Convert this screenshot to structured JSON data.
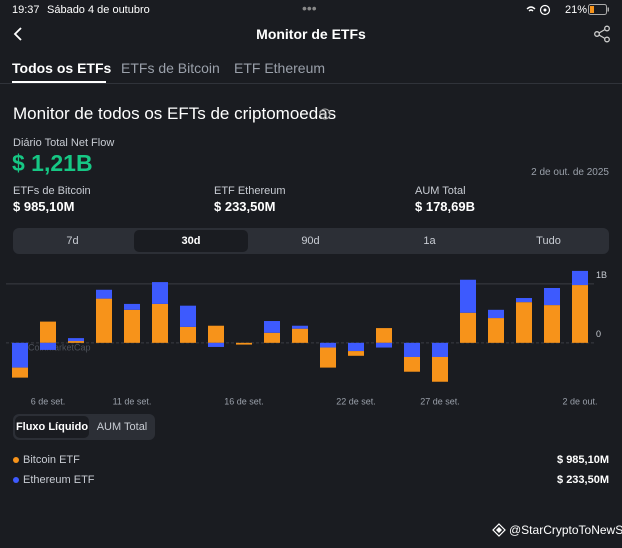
{
  "status": {
    "time": "19:37",
    "date": "Sábado 4 de outubro",
    "battery": "21%"
  },
  "header": {
    "title": "Monitor de ETFs"
  },
  "tabs": [
    "Todos os ETFs",
    "ETFs de Bitcoin",
    "ETF Ethereum"
  ],
  "section": {
    "title": "Monitor de todos os EFTs de criptomoedas",
    "net_flow_label": "Diário Total Net Flow",
    "net_flow": "$ 1,21B",
    "date": "2 de out. de 2025"
  },
  "stats": [
    {
      "label": "ETFs de Bitcoin",
      "value": "$ 985,10M"
    },
    {
      "label": "ETF Ethereum",
      "value": "$ 233,50M"
    },
    {
      "label": "AUM Total",
      "value": "$ 178,69B"
    }
  ],
  "ranges": [
    "7d",
    "30d",
    "90d",
    "1a",
    "Tudo"
  ],
  "chart_data": {
    "type": "bar",
    "stacked": true,
    "watermark": "CoinMarketCap",
    "categories": [
      null,
      "6 de set.",
      null,
      null,
      "11 de set.",
      null,
      null,
      null,
      "16 de set.",
      null,
      null,
      null,
      "22 de set.",
      null,
      null,
      "27 de set.",
      null,
      null,
      null,
      null,
      "2 de out."
    ],
    "series": [
      {
        "name": "Bitcoin ETF",
        "color": "#f7931a",
        "values": [
          -0.17,
          0.36,
          0.03,
          0.75,
          0.56,
          0.66,
          0.27,
          0.29,
          -0.03,
          0.17,
          0.24,
          -0.34,
          -0.08,
          0.25,
          -0.25,
          -0.42,
          0.51,
          0.42,
          0.69,
          0.64,
          0.98
        ]
      },
      {
        "name": "Ethereum ETF",
        "color": "#3d5afe",
        "values": [
          -0.42,
          -0.12,
          0.05,
          0.15,
          0.1,
          0.37,
          0.36,
          -0.07,
          0,
          0.2,
          0.05,
          -0.08,
          -0.14,
          -0.08,
          -0.24,
          -0.24,
          0.56,
          0.14,
          0.07,
          0.29,
          0.24
        ]
      }
    ],
    "ylim": [
      -0.8,
      1.32
    ],
    "yticks": [
      {
        "value": 1,
        "label": "1B"
      },
      0
    ],
    "grid": true
  },
  "toggle": [
    "Fluxo Líquido",
    "AUM Total"
  ],
  "legend_values": [
    "$ 985,10M",
    "$ 233,50M"
  ],
  "watermark": "@StarCryptoToNewS"
}
